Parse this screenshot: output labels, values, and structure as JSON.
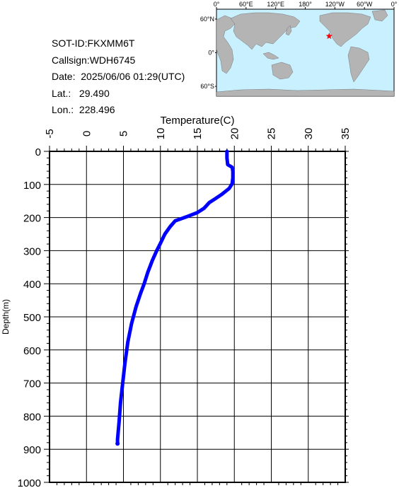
{
  "station": {
    "sot_id": "SOT-ID:FKXMM6T",
    "callsign": "Callsign:WDH6745",
    "date": "Date:  2025/06/06 01:29(UTC)",
    "lat": "Lat.:   29.490",
    "lon": "Lon.:  228.496"
  },
  "map": {
    "lon_labels": [
      "0°",
      "60°E",
      "120°E",
      "180°",
      "120°W",
      "60°W",
      "0°"
    ],
    "lat_labels": [
      "60°N",
      "0°",
      "60°S"
    ],
    "ocean_color": "#c8f0ff",
    "land_color": "#b4b4b4",
    "marker": {
      "lat": 29.49,
      "lon": 228.496,
      "color": "#ff0000",
      "symbol": "star"
    }
  },
  "chart_data": {
    "type": "line",
    "xlabel": "Temperature(C)",
    "ylabel": "Depth(m)",
    "xlim": [
      -5,
      35
    ],
    "ylim": [
      0,
      1000
    ],
    "y_inverted": true,
    "x_axis_position": "top",
    "x_ticks": [
      -5,
      0,
      5,
      10,
      15,
      20,
      25,
      30,
      35
    ],
    "y_ticks": [
      0,
      100,
      200,
      300,
      400,
      500,
      600,
      700,
      800,
      900,
      1000
    ],
    "grid": true,
    "series": [
      {
        "color": "#0000ff",
        "points": [
          [
            19.0,
            0
          ],
          [
            19.0,
            20
          ],
          [
            19.1,
            40
          ],
          [
            19.7,
            48
          ],
          [
            19.8,
            60
          ],
          [
            19.8,
            80
          ],
          [
            19.7,
            98
          ],
          [
            19.3,
            112
          ],
          [
            18.3,
            130
          ],
          [
            17.3,
            145
          ],
          [
            16.6,
            155
          ],
          [
            15.9,
            172
          ],
          [
            15.0,
            185
          ],
          [
            13.5,
            198
          ],
          [
            12.0,
            210
          ],
          [
            11.3,
            228
          ],
          [
            10.6,
            250
          ],
          [
            10.0,
            278
          ],
          [
            9.5,
            300
          ],
          [
            8.9,
            330
          ],
          [
            8.3,
            365
          ],
          [
            7.8,
            400
          ],
          [
            7.3,
            430
          ],
          [
            6.7,
            470
          ],
          [
            6.1,
            520
          ],
          [
            5.6,
            575
          ],
          [
            5.2,
            640
          ],
          [
            4.9,
            700
          ],
          [
            4.6,
            760
          ],
          [
            4.4,
            820
          ],
          [
            4.2,
            870
          ],
          [
            4.2,
            883
          ]
        ]
      }
    ]
  }
}
